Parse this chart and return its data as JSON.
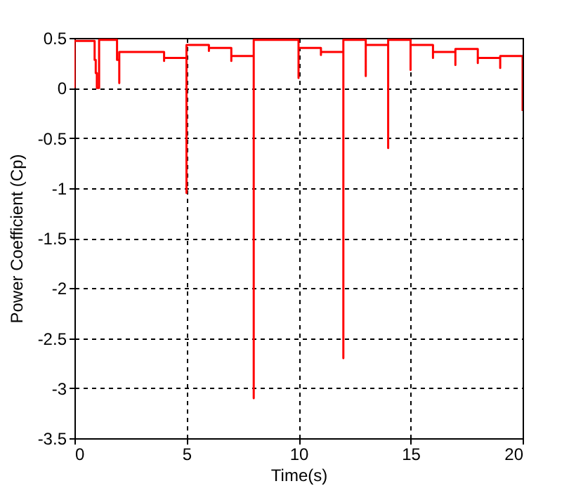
{
  "chart_data": {
    "type": "line",
    "xlabel": "Time(s)",
    "ylabel": "Power Coefficient (Cp)",
    "xlim": [
      0,
      20
    ],
    "xticks": [
      0,
      5,
      10,
      15,
      20
    ],
    "ylim": [
      -3.5,
      0.5
    ],
    "yticks": [
      -3.5,
      -3,
      -2.5,
      -2,
      -1.5,
      -1,
      -0.5,
      0,
      0.5
    ],
    "grid": true,
    "series": [
      {
        "color": "#ff0000",
        "x": [
          0,
          0,
          0.9,
          0.9,
          0.95,
          0.95,
          1.0,
          1.0,
          1.1,
          1.1,
          1.9,
          1.9,
          2,
          2,
          2,
          4,
          4,
          4,
          5,
          5,
          5,
          6,
          6,
          6,
          7,
          7,
          7,
          8,
          8,
          8,
          10,
          10,
          10,
          11,
          11,
          11,
          12,
          12,
          12,
          13,
          13,
          13,
          14,
          14,
          14,
          15,
          15,
          15,
          16,
          16,
          16,
          17,
          17,
          17,
          18,
          18,
          18,
          19,
          19,
          19,
          20,
          20
        ],
        "values": [
          0,
          0.47,
          0.47,
          0.28,
          0.28,
          0.15,
          0.15,
          0,
          0,
          0.48,
          0.48,
          0.28,
          0.28,
          0.05,
          0.36,
          0.36,
          0.27,
          0.3,
          0.3,
          -1.05,
          0.43,
          0.43,
          0.37,
          0.4,
          0.4,
          0.27,
          0.32,
          0.32,
          -3.1,
          0.48,
          0.48,
          0.1,
          0.4,
          0.4,
          0.33,
          0.36,
          0.36,
          -2.7,
          0.48,
          0.48,
          0.12,
          0.43,
          0.43,
          -0.6,
          0.48,
          0.48,
          0.18,
          0.43,
          0.43,
          0.3,
          0.36,
          0.36,
          0.23,
          0.39,
          0.39,
          0.25,
          0.3,
          0.3,
          0.2,
          0.32,
          0.32,
          -0.23
        ]
      }
    ]
  }
}
